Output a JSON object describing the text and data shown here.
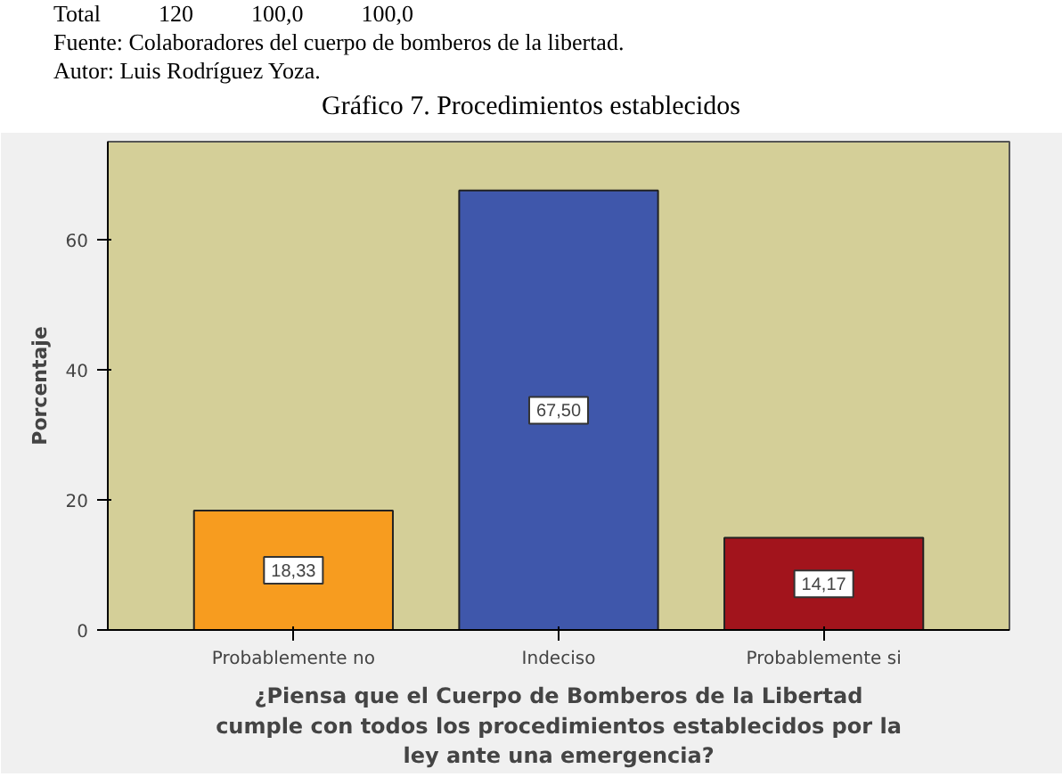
{
  "chart_data": {
    "type": "bar",
    "title": "Gráfico 7. Procedimientos establecidos",
    "annotations": [
      "Total          120          100,0          100,0",
      "Fuente: Colaboradores del cuerpo de bomberos de la libertad.",
      "Autor: Luis Rodríguez Yoza."
    ],
    "categories": [
      "Probablemente no",
      "Indeciso",
      "Probablemente si"
    ],
    "values": [
      18.33,
      67.5,
      14.17
    ],
    "value_labels": [
      "18,33",
      "67,50",
      "14,17"
    ],
    "colors": [
      "#f79c1f",
      "#3f57ab",
      "#a2141c"
    ],
    "ylabel": "Porcentaje",
    "xlabel": "¿Piensa que el Cuerpo de Bomberos de la Libertad\ncumple con todos los procedimientos establecidos por la\nley ante una emergencia?",
    "ylim": [
      0,
      75
    ],
    "yticks": [
      0,
      20,
      40,
      60
    ],
    "grid": false
  }
}
